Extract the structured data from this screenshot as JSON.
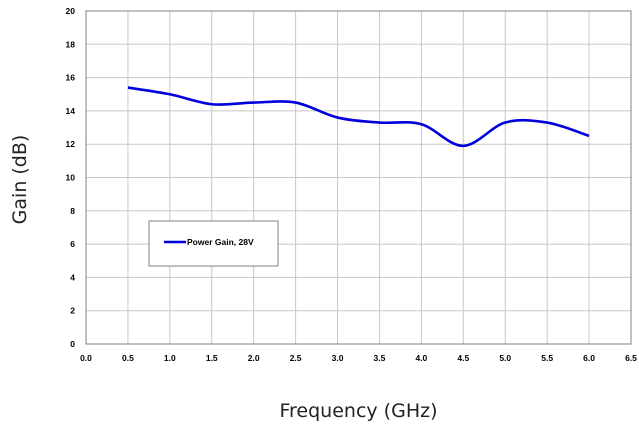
{
  "chart_data": {
    "type": "line",
    "title": "",
    "xlabel": "Frequency (GHz)",
    "ylabel": "Gain (dB)",
    "xlim": [
      0.0,
      6.5
    ],
    "ylim": [
      0,
      20
    ],
    "x_ticks": [
      "0.0",
      "0.5",
      "1.0",
      "1.5",
      "2.0",
      "2.5",
      "3.0",
      "3.5",
      "4.0",
      "4.5",
      "5.0",
      "5.5",
      "6.0",
      "6.5"
    ],
    "y_ticks": [
      "0",
      "2",
      "4",
      "6",
      "8",
      "10",
      "12",
      "14",
      "16",
      "18",
      "20"
    ],
    "grid": true,
    "legend_position": "left-middle",
    "series": [
      {
        "name": "Power Gain, 28V",
        "color": "#0000dd",
        "x": [
          0.5,
          1.0,
          1.5,
          2.0,
          2.5,
          3.0,
          3.5,
          4.0,
          4.5,
          5.0,
          5.5,
          6.0
        ],
        "values": [
          15.4,
          15.0,
          14.4,
          14.5,
          14.5,
          13.6,
          13.3,
          13.2,
          11.9,
          13.3,
          13.3,
          12.5
        ]
      }
    ]
  }
}
